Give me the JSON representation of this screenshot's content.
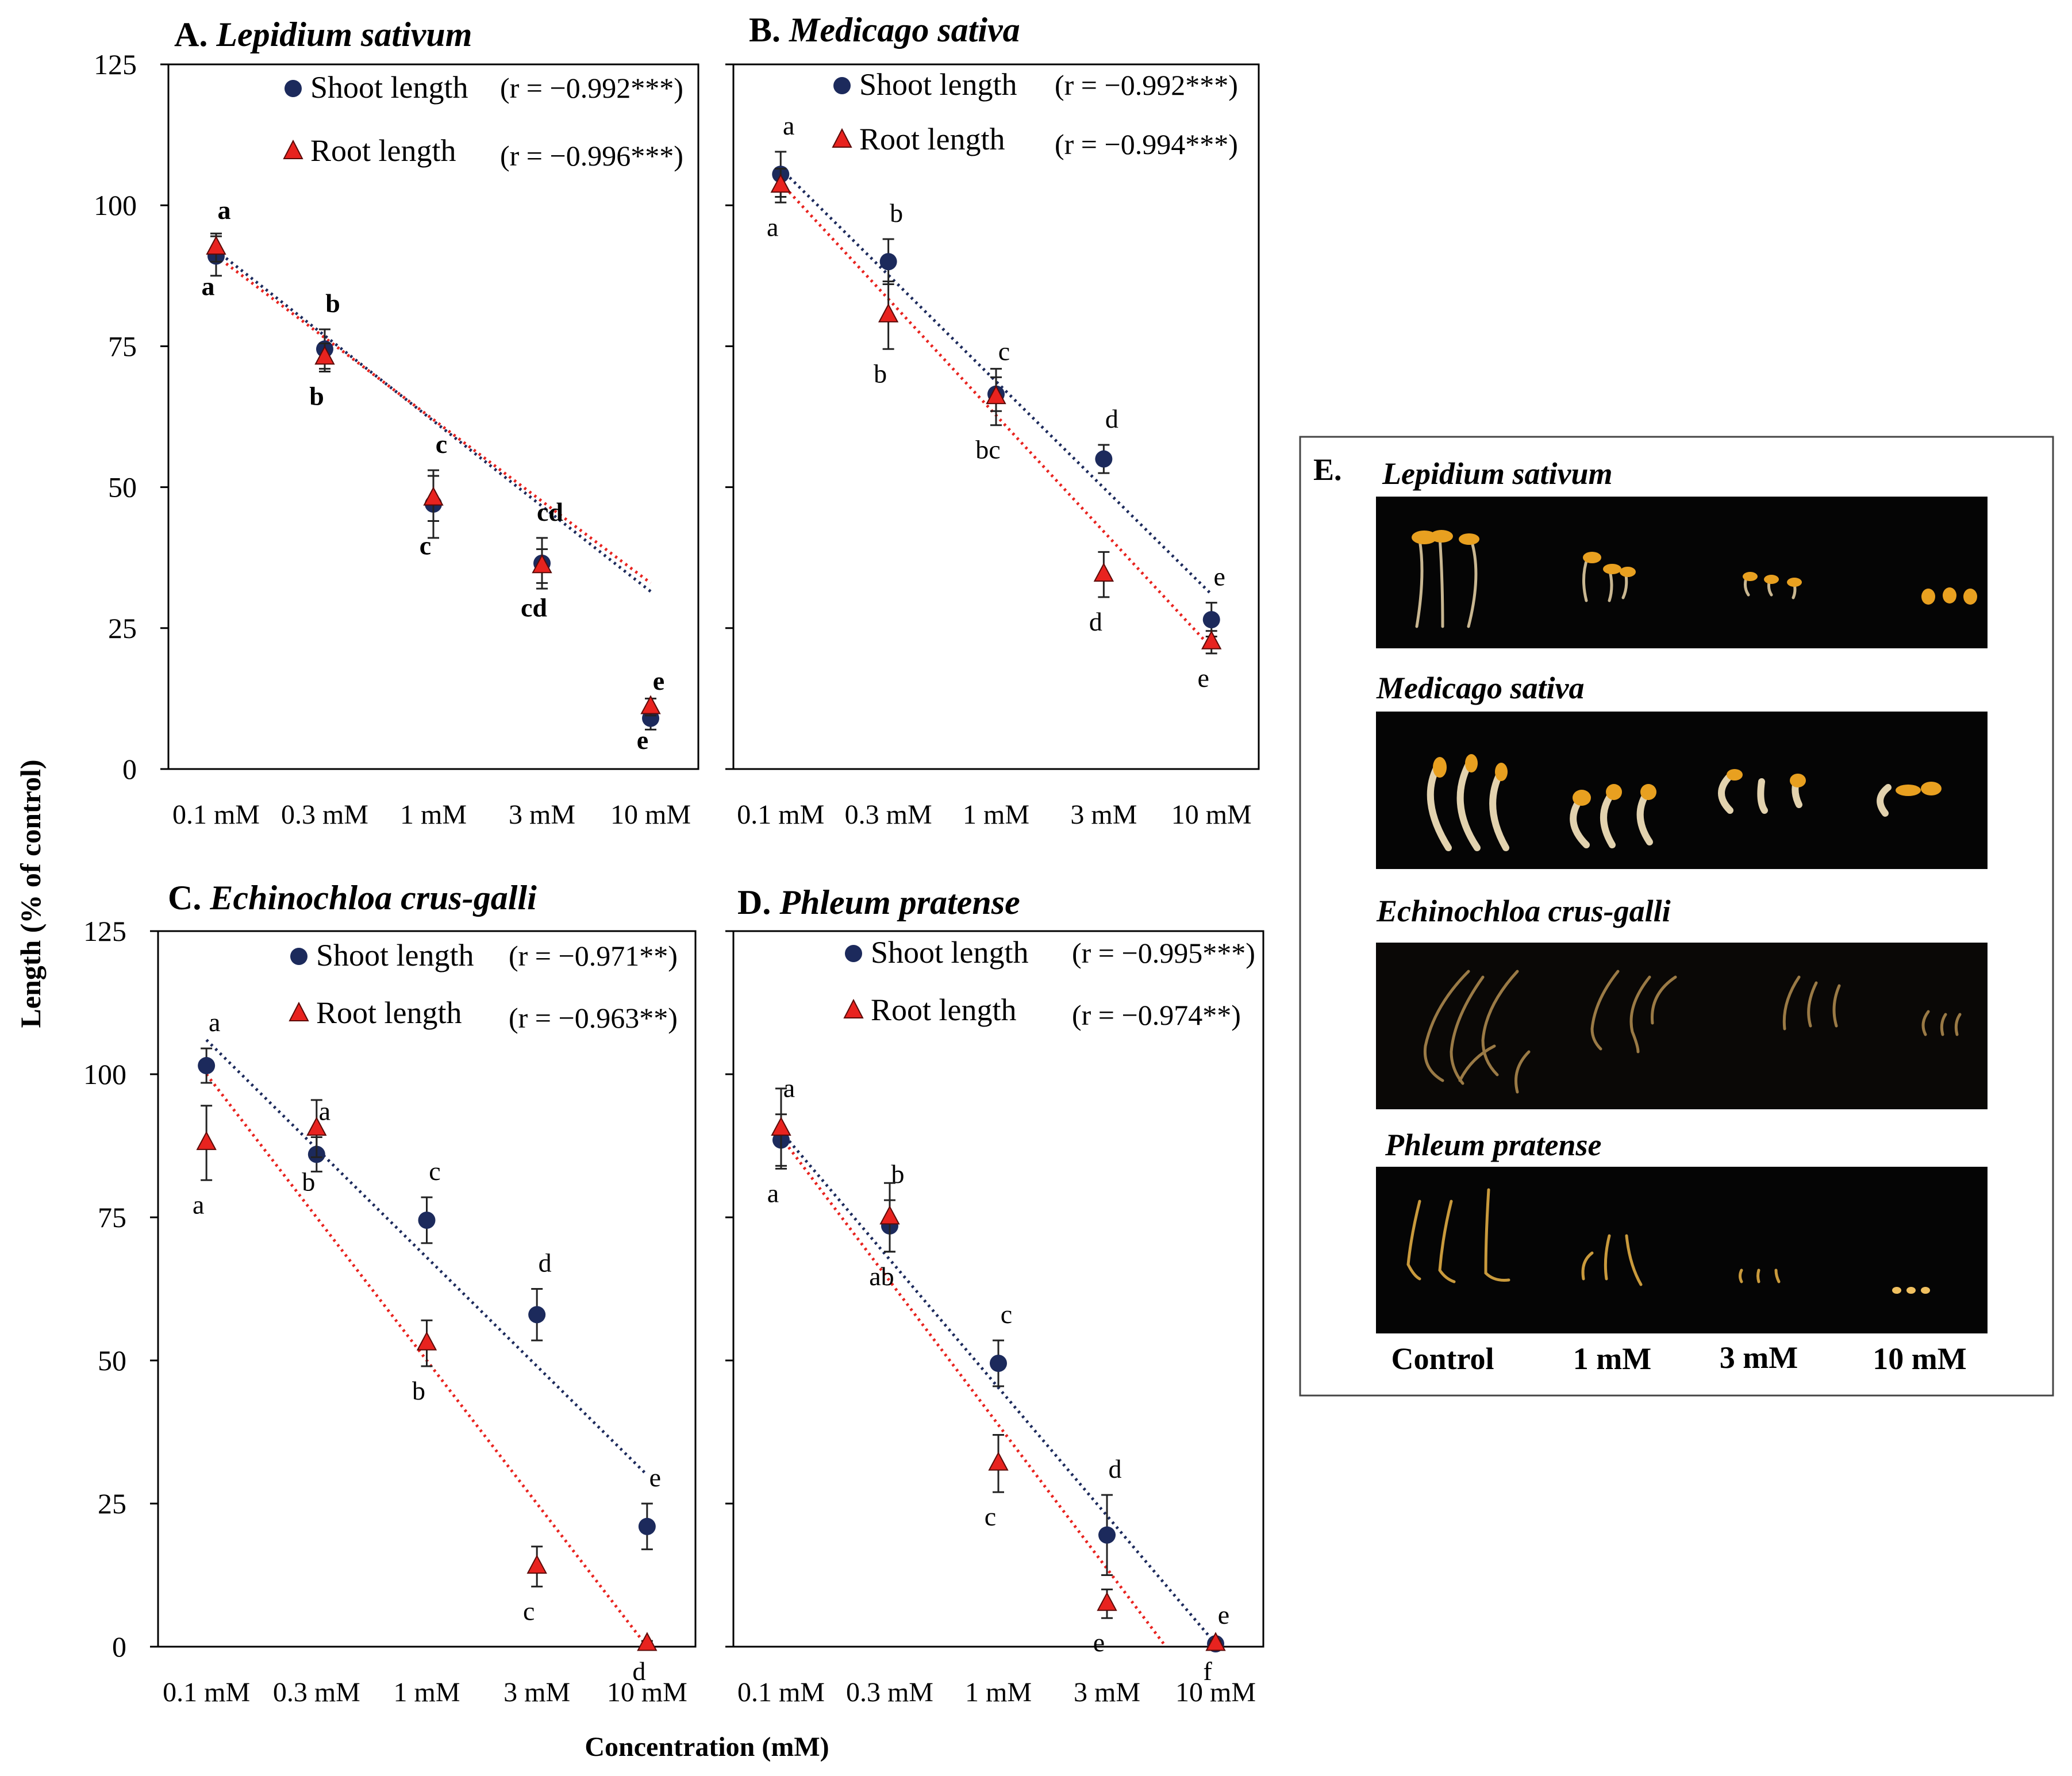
{
  "figure": {
    "y_axis_label": "Length (% of control)",
    "x_axis_label": "Concentration (mM)"
  },
  "panel_e": {
    "letter": "E.",
    "species": [
      "Lepidium sativum",
      "Medicago sativa",
      "Echinochloa crus-galli",
      "Phleum pratense"
    ],
    "column_labels": [
      "Control",
      "1 mM",
      "3 mM",
      "10 mM"
    ]
  },
  "colors": {
    "shoot": "#1c2a5c",
    "root": "#e8231f",
    "axis": "#000000",
    "photo_bg": "#050505"
  },
  "chart_data": [
    {
      "type": "scatter",
      "panel": "A.",
      "title": "Lepidium sativum",
      "categories": [
        "0.1 mM",
        "0.3 mM",
        "1 mM",
        "3 mM",
        "10 mM"
      ],
      "ylim": [
        0,
        125
      ],
      "yticks": [
        0,
        25,
        50,
        75,
        100,
        125
      ],
      "show_ytick_labels": true,
      "series": [
        {
          "name": "Shoot length",
          "r_label": "(r = −0.992***)",
          "marker": "circle",
          "values": [
            91,
            74.5,
            47,
            36.5,
            9
          ],
          "errors": [
            3.5,
            3.5,
            6,
            4.5,
            2
          ],
          "trend": [
            92,
            31.5
          ],
          "letters": [
            "a",
            "b",
            "c",
            "cd",
            "e"
          ]
        },
        {
          "name": "Root length",
          "r_label": "(r = −0.996***)",
          "marker": "triangle",
          "values": [
            92.5,
            73,
            48,
            36,
            11
          ],
          "errors": [
            2.5,
            2.5,
            4,
            3,
            1.5
          ],
          "trend": [
            91,
            33
          ],
          "letters": [
            "a",
            "b",
            "c",
            "cd",
            "e"
          ]
        }
      ]
    },
    {
      "type": "scatter",
      "panel": "B.",
      "title": "Medicago sativa",
      "categories": [
        "0.1 mM",
        "0.3 mM",
        "1 mM",
        "3 mM",
        "10 mM"
      ],
      "ylim": [
        0,
        125
      ],
      "yticks": [
        0,
        25,
        50,
        75,
        100,
        125
      ],
      "show_ytick_labels": false,
      "series": [
        {
          "name": "Shoot length",
          "r_label": "(r = −0.992***)",
          "marker": "circle",
          "values": [
            105.5,
            90,
            66.5,
            55,
            26.5
          ],
          "errors": [
            4,
            4,
            3,
            2.5,
            3
          ],
          "trend": [
            106.5,
            31
          ],
          "letters": [
            "a",
            "b",
            "c",
            "d",
            "e"
          ]
        },
        {
          "name": "Root length",
          "r_label": "(r = −0.994***)",
          "marker": "triangle",
          "values": [
            103.5,
            80.5,
            66,
            34.5,
            22.5
          ],
          "errors": [
            3,
            6,
            5,
            4,
            2
          ],
          "trend": [
            104,
            21.5
          ],
          "letters": [
            "a",
            "b",
            "bc",
            "d",
            "e"
          ]
        }
      ]
    },
    {
      "type": "scatter",
      "panel": "C.",
      "title": "Echinochloa crus-galli",
      "categories": [
        "0.1 mM",
        "0.3 mM",
        "1 mM",
        "3 mM",
        "10 mM"
      ],
      "ylim": [
        0,
        125
      ],
      "yticks": [
        0,
        25,
        50,
        75,
        100,
        125
      ],
      "show_ytick_labels": true,
      "series": [
        {
          "name": "Shoot length",
          "r_label": "(r = −0.971**)",
          "marker": "circle",
          "values": [
            101.5,
            86,
            74.5,
            58,
            21
          ],
          "errors": [
            3,
            3,
            4,
            4.5,
            4
          ],
          "trend": [
            106,
            30
          ],
          "letters": [
            "a",
            "a",
            "c",
            "d",
            "e"
          ]
        },
        {
          "name": "Root length",
          "r_label": "(r = −0.963**)",
          "marker": "triangle",
          "values": [
            88,
            90.5,
            53,
            14,
            0.5
          ],
          "errors": [
            6.5,
            5,
            4,
            3.5,
            0.5
          ],
          "trend": [
            100,
            0
          ],
          "letters": [
            "a",
            "b",
            "b",
            "c",
            "d"
          ]
        }
      ]
    },
    {
      "type": "scatter",
      "panel": "D.",
      "title": "Phleum pratense",
      "categories": [
        "0.1 mM",
        "0.3 mM",
        "1 mM",
        "3 mM",
        "10 mM"
      ],
      "ylim": [
        0,
        125
      ],
      "yticks": [
        0,
        25,
        50,
        75,
        100,
        125
      ],
      "show_ytick_labels": false,
      "series": [
        {
          "name": "Shoot length",
          "r_label": "(r = −0.995***)",
          "marker": "circle",
          "values": [
            88.5,
            73.5,
            49.5,
            19.5,
            0.5
          ],
          "errors": [
            4.5,
            4.5,
            4,
            7,
            0.5
          ],
          "trend": [
            90,
            0.5
          ],
          "letters": [
            "a",
            "b",
            "c",
            "d",
            "e"
          ]
        },
        {
          "name": "Root length",
          "r_label": "(r = −0.974**)",
          "marker": "triangle",
          "values": [
            90.5,
            75,
            32,
            7.5,
            0.5
          ],
          "errors": [
            7,
            6,
            5,
            2.5,
            0.5
          ],
          "trend": [
            89,
            -11.5
          ],
          "letters": [
            "a",
            "ab",
            "c",
            "e",
            "f"
          ]
        }
      ]
    }
  ]
}
